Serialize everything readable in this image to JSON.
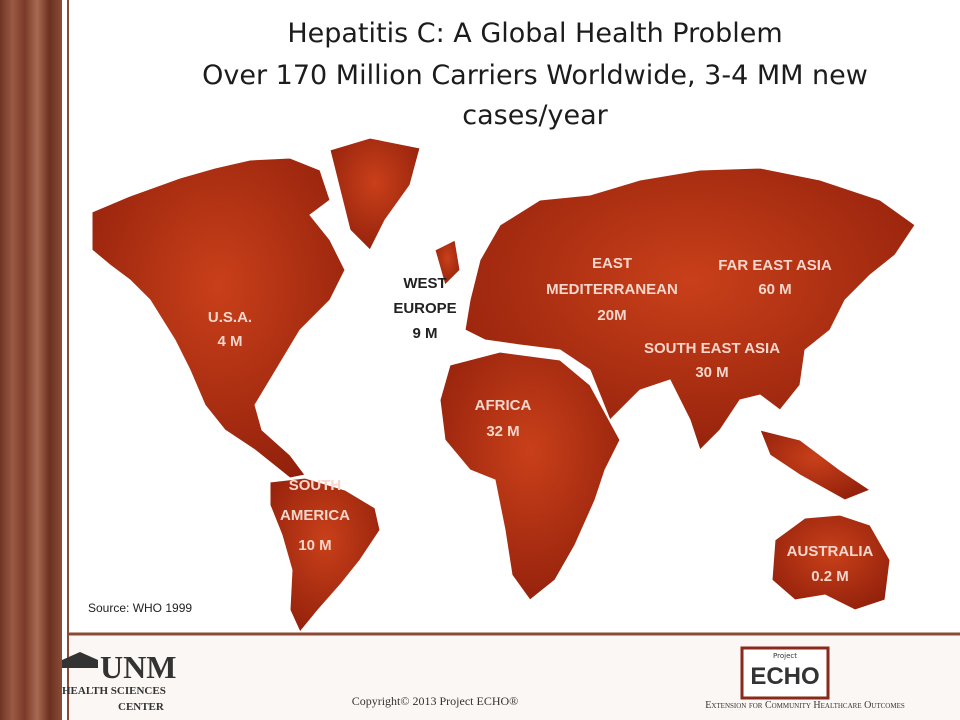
{
  "title": {
    "line1": "Hepatitis C:  A Global Health Problem",
    "line2": "Over 170 Million Carriers Worldwide, 3-4 MM new",
    "line3": "cases/year"
  },
  "regions": [
    {
      "lines": [
        "U.S.A.",
        "4 M"
      ]
    },
    {
      "lines": [
        "WEST",
        "EUROPE",
        "9 M"
      ]
    },
    {
      "lines": [
        "EAST",
        "MEDITERRANEAN",
        "20M"
      ]
    },
    {
      "lines": [
        "FAR EAST ASIA",
        "60 M"
      ]
    },
    {
      "lines": [
        "SOUTH EAST ASIA",
        "30 M"
      ]
    },
    {
      "lines": [
        "AFRICA",
        "32 M"
      ]
    },
    {
      "lines": [
        "SOUTH",
        "AMERICA",
        "10 M"
      ]
    },
    {
      "lines": [
        "AUSTRALIA",
        "0.2 M"
      ]
    }
  ],
  "source": "Source:   WHO 1999",
  "footer": {
    "unm": "UNM",
    "hsc_line1": "HEALTH SCIENCES",
    "hsc_line2": "CENTER",
    "copyright": "Copyright© 2013 Project ECHO®",
    "echo_small": "Project",
    "echo": "ECHO",
    "tagline": "Extension for Community Healthcare Outcomes"
  }
}
